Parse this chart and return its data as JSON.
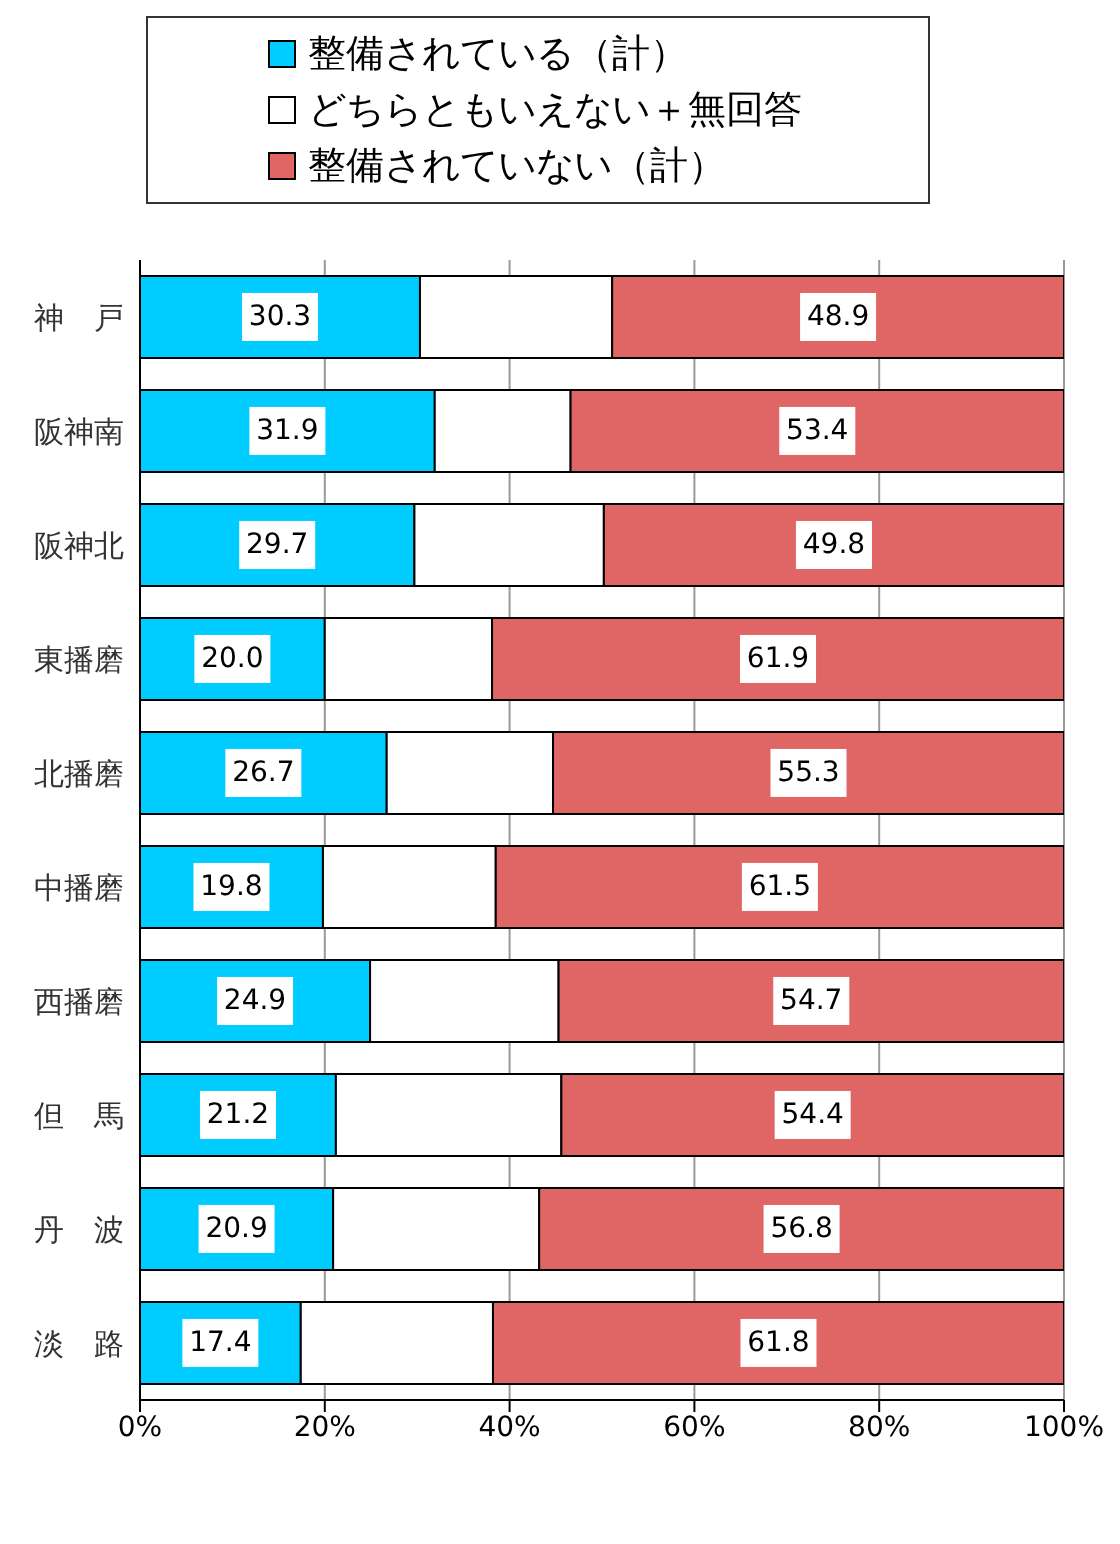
{
  "chart_data": {
    "type": "bar",
    "orientation": "horizontal",
    "stacked": true,
    "categories": [
      "神　戸",
      "阪神南",
      "阪神北",
      "東播磨",
      "北播磨",
      "中播磨",
      "西播磨",
      "但　馬",
      "丹　波",
      "淡　路"
    ],
    "series": [
      {
        "name": "整備されている（計）",
        "color": "#00ccff",
        "values": [
          30.3,
          31.9,
          29.7,
          20.0,
          26.7,
          19.8,
          24.9,
          21.2,
          20.9,
          17.4
        ],
        "value_labels": [
          "30.3",
          "31.9",
          "29.7",
          "20.0",
          "26.7",
          "19.8",
          "24.9",
          "21.2",
          "20.9",
          "17.4"
        ]
      },
      {
        "name": "どちらともいえない＋無回答",
        "color": "#ffffff",
        "values": [
          20.8,
          14.7,
          20.5,
          18.1,
          18.0,
          18.7,
          20.4,
          24.4,
          22.3,
          20.8
        ]
      },
      {
        "name": "整備されていない（計）",
        "color": "#e06666",
        "values": [
          48.9,
          53.4,
          49.8,
          61.9,
          55.3,
          61.5,
          54.7,
          54.4,
          56.8,
          61.8
        ],
        "value_labels": [
          "48.9",
          "53.4",
          "49.8",
          "61.9",
          "55.3",
          "61.5",
          "54.7",
          "54.4",
          "56.8",
          "61.8"
        ]
      }
    ],
    "xlim": [
      0,
      100
    ],
    "xticks": [
      {
        "value": 0,
        "label": "0%"
      },
      {
        "value": 20,
        "label": "20%"
      },
      {
        "value": 40,
        "label": "40%"
      },
      {
        "value": 60,
        "label": "60%"
      },
      {
        "value": 80,
        "label": "80%"
      },
      {
        "value": 100,
        "label": "100%"
      }
    ],
    "grid": "x",
    "legend": "top"
  }
}
